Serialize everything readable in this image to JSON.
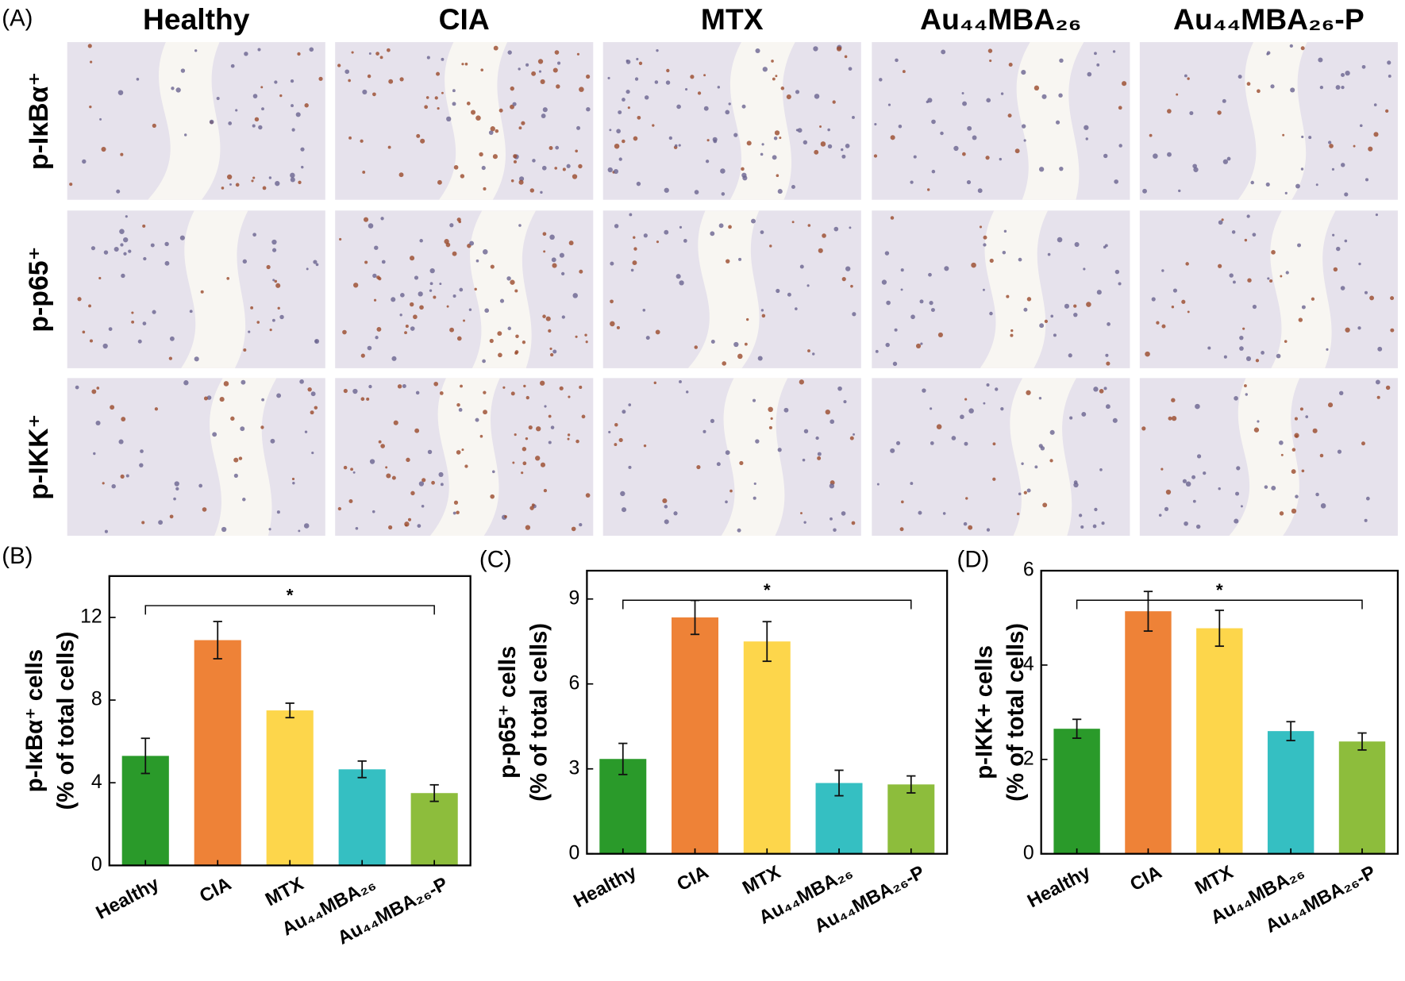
{
  "panel_a": {
    "label": "(A)",
    "columns": [
      "Healthy",
      "CIA",
      "MTX",
      "Au₄₄MBA₂₆",
      "Au₄₄MBA₂₆-P"
    ],
    "rows": [
      "p-IκBα⁺",
      "p-p65⁺",
      "p-IKK⁺"
    ]
  },
  "chart_data": [
    {
      "type": "bar",
      "panel_label": "(B)",
      "ylabel": [
        "p-IκBα⁺ cells",
        "(% of total cells)"
      ],
      "categories": [
        "Healthy",
        "CIA",
        "MTX",
        "Au₄₄MBA₂₆",
        "Au₄₄MBA₂₆-P"
      ],
      "values": [
        5.3,
        10.9,
        7.5,
        4.65,
        3.5
      ],
      "errors": [
        0.85,
        0.9,
        0.35,
        0.4,
        0.4
      ],
      "colors": [
        "#2a9a2a",
        "#ee8237",
        "#fdd64b",
        "#35bfc2",
        "#8dbd3c"
      ],
      "ylim": [
        0,
        14
      ],
      "yticks": [
        0,
        4,
        8,
        12
      ],
      "annotations": [
        {
          "text": "*",
          "from": "Healthy",
          "to": "Au₄₄MBA₂₆-P"
        }
      ]
    },
    {
      "type": "bar",
      "panel_label": "(C)",
      "ylabel": [
        "p-p65⁺ cells",
        "(% of total cells)"
      ],
      "categories": [
        "Healthy",
        "CIA",
        "MTX",
        "Au₄₄MBA₂₆",
        "Au₄₄MBA₂₆-P"
      ],
      "values": [
        3.35,
        8.35,
        7.5,
        2.5,
        2.45
      ],
      "errors": [
        0.55,
        0.6,
        0.7,
        0.45,
        0.3
      ],
      "colors": [
        "#2a9a2a",
        "#ee8237",
        "#fdd64b",
        "#35bfc2",
        "#8dbd3c"
      ],
      "ylim": [
        0,
        10
      ],
      "yticks": [
        0,
        3,
        6,
        9
      ],
      "annotations": [
        {
          "text": "*",
          "from": "Healthy",
          "to": "Au₄₄MBA₂₆-P"
        }
      ]
    },
    {
      "type": "bar",
      "panel_label": "(D)",
      "ylabel": [
        "p-IKK+ cells",
        "(% of total cells)"
      ],
      "categories": [
        "Healthy",
        "CIA",
        "MTX",
        "Au₄₄MBA₂₆",
        "Au₄₄MBA₂₆-P"
      ],
      "values": [
        2.65,
        5.14,
        4.78,
        2.6,
        2.38
      ],
      "errors": [
        0.2,
        0.42,
        0.38,
        0.2,
        0.18
      ],
      "colors": [
        "#2a9a2a",
        "#ee8237",
        "#fdd64b",
        "#35bfc2",
        "#8dbd3c"
      ],
      "ylim": [
        0,
        6
      ],
      "yticks": [
        0,
        2,
        4,
        6
      ],
      "annotations": [
        {
          "text": "*",
          "from": "Healthy",
          "to": "Au₄₄MBA₂₆-P"
        }
      ]
    }
  ]
}
